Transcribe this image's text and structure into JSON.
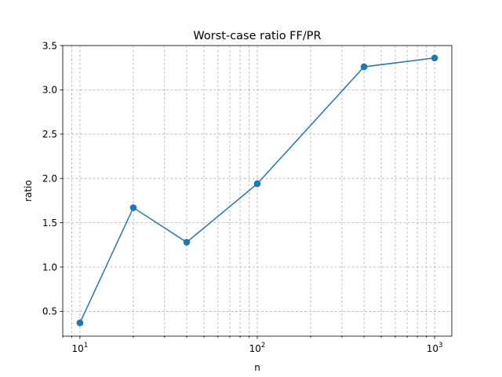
{
  "chart_data": {
    "type": "line",
    "title": "Worst-case ratio FF/PR",
    "xlabel": "n",
    "ylabel": "ratio",
    "xscale": "log",
    "xlim": [
      8,
      1250
    ],
    "ylim": [
      0.22,
      3.5
    ],
    "x_ticks": [
      {
        "value": 10,
        "base": "10",
        "exp": "1"
      },
      {
        "value": 100,
        "base": "10",
        "exp": "2"
      },
      {
        "value": 1000,
        "base": "10",
        "exp": "3"
      }
    ],
    "y_ticks": [
      {
        "value": 0.5,
        "label": "0.5"
      },
      {
        "value": 1.0,
        "label": "1.0"
      },
      {
        "value": 1.5,
        "label": "1.5"
      },
      {
        "value": 2.0,
        "label": "2.0"
      },
      {
        "value": 2.5,
        "label": "2.5"
      },
      {
        "value": 3.0,
        "label": "3.0"
      },
      {
        "value": 3.5,
        "label": "3.5"
      }
    ],
    "grid": true,
    "series": [
      {
        "color": "#1f77b4",
        "marker": "circle",
        "x": [
          10,
          20,
          40,
          100,
          400,
          1000
        ],
        "y": [
          0.37,
          1.67,
          1.28,
          1.94,
          3.26,
          3.36
        ]
      }
    ]
  }
}
